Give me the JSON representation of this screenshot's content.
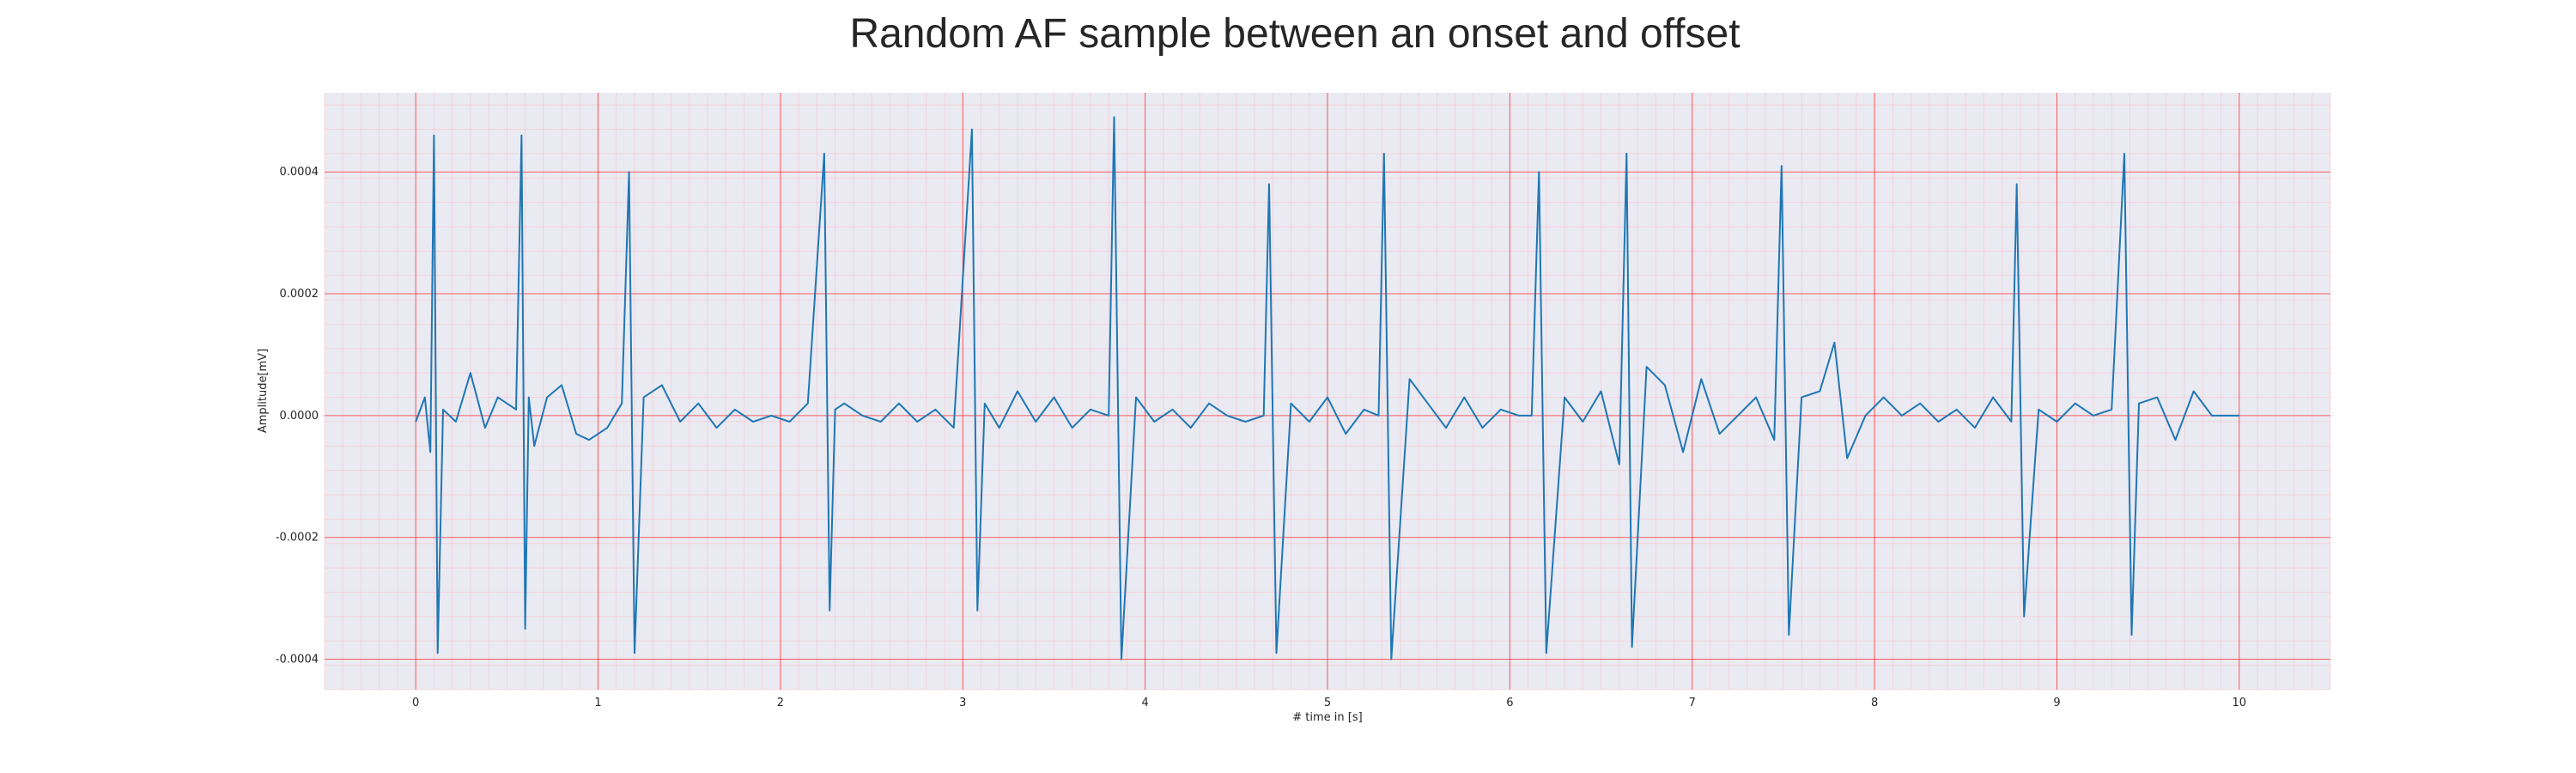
{
  "chart_data": {
    "type": "line",
    "title": "Random AF sample between an onset and offset",
    "xlabel": "# time in [s]",
    "ylabel": "Amplitude[mV]",
    "xlim": [
      -0.5,
      10.5
    ],
    "ylim": [
      -0.00045,
      0.00053
    ],
    "xticks": [
      0,
      1,
      2,
      3,
      4,
      5,
      6,
      7,
      8,
      9,
      10
    ],
    "xtick_labels": [
      "0",
      "1",
      "2",
      "3",
      "4",
      "5",
      "6",
      "7",
      "8",
      "9",
      "10"
    ],
    "yticks": [
      -0.0004,
      -0.0002,
      0.0,
      0.0002,
      0.0004
    ],
    "ytick_labels": [
      "-0.0004",
      "-0.0002",
      "0.0000",
      "0.0002",
      "0.0004"
    ],
    "grid": true,
    "major_grid_color": "#ff0000",
    "minor_grid_color": "#ffb6c1",
    "background_color": "#eaeaf2",
    "series": [
      {
        "color": "#1f77b4",
        "x": [
          0.0,
          0.05,
          0.08,
          0.1,
          0.12,
          0.15,
          0.22,
          0.3,
          0.38,
          0.45,
          0.55,
          0.58,
          0.6,
          0.62,
          0.65,
          0.72,
          0.8,
          0.88,
          0.95,
          1.05,
          1.13,
          1.17,
          1.2,
          1.25,
          1.35,
          1.45,
          1.55,
          1.65,
          1.75,
          1.85,
          1.95,
          2.05,
          2.15,
          2.24,
          2.27,
          2.3,
          2.35,
          2.45,
          2.55,
          2.65,
          2.75,
          2.85,
          2.95,
          3.05,
          3.08,
          3.12,
          3.2,
          3.3,
          3.4,
          3.5,
          3.6,
          3.7,
          3.8,
          3.83,
          3.87,
          3.95,
          4.05,
          4.15,
          4.25,
          4.35,
          4.45,
          4.55,
          4.65,
          4.68,
          4.72,
          4.8,
          4.9,
          5.0,
          5.1,
          5.2,
          5.28,
          5.31,
          5.35,
          5.45,
          5.55,
          5.65,
          5.75,
          5.85,
          5.95,
          6.05,
          6.12,
          6.16,
          6.2,
          6.3,
          6.4,
          6.5,
          6.6,
          6.64,
          6.67,
          6.75,
          6.85,
          6.95,
          7.05,
          7.15,
          7.25,
          7.35,
          7.45,
          7.49,
          7.53,
          7.6,
          7.7,
          7.78,
          7.85,
          7.95,
          8.05,
          8.15,
          8.25,
          8.35,
          8.45,
          8.55,
          8.65,
          8.75,
          8.78,
          8.82,
          8.9,
          9.0,
          9.1,
          9.2,
          9.3,
          9.37,
          9.41,
          9.45,
          9.55,
          9.65,
          9.75,
          9.85,
          10.0
        ],
        "y": [
          -1e-05,
          3e-05,
          -6e-05,
          0.00046,
          -0.00039,
          1e-05,
          -1e-05,
          7e-05,
          -2e-05,
          3e-05,
          1e-05,
          0.00046,
          -0.00035,
          3e-05,
          -5e-05,
          3e-05,
          5e-05,
          -3e-05,
          -4e-05,
          -2e-05,
          2e-05,
          0.0004,
          -0.00039,
          3e-05,
          5e-05,
          -1e-05,
          2e-05,
          -2e-05,
          1e-05,
          -1e-05,
          0.0,
          -1e-05,
          2e-05,
          0.00043,
          -0.00032,
          1e-05,
          2e-05,
          0.0,
          -1e-05,
          2e-05,
          -1e-05,
          1e-05,
          -2e-05,
          0.00047,
          -0.00032,
          2e-05,
          -2e-05,
          4e-05,
          -1e-05,
          3e-05,
          -2e-05,
          1e-05,
          0.0,
          0.00049,
          -0.0004,
          3e-05,
          -1e-05,
          1e-05,
          -2e-05,
          2e-05,
          0.0,
          -1e-05,
          0.0,
          0.00038,
          -0.00039,
          2e-05,
          -1e-05,
          3e-05,
          -3e-05,
          1e-05,
          0.0,
          0.00043,
          -0.0004,
          6e-05,
          2e-05,
          -2e-05,
          3e-05,
          -2e-05,
          1e-05,
          0.0,
          0.0,
          0.0004,
          -0.00039,
          3e-05,
          -1e-05,
          4e-05,
          -8e-05,
          0.00043,
          -0.00038,
          8e-05,
          5e-05,
          -6e-05,
          6e-05,
          -3e-05,
          0.0,
          3e-05,
          -4e-05,
          0.00041,
          -0.00036,
          3e-05,
          4e-05,
          0.00012,
          -7e-05,
          0.0,
          3e-05,
          0.0,
          2e-05,
          -1e-05,
          1e-05,
          -2e-05,
          3e-05,
          -1e-05,
          0.00038,
          -0.00033,
          1e-05,
          -1e-05,
          2e-05,
          0.0,
          1e-05,
          0.00043,
          -0.00036,
          2e-05,
          3e-05,
          -4e-05,
          4e-05,
          0.0,
          0.0
        ]
      }
    ]
  }
}
